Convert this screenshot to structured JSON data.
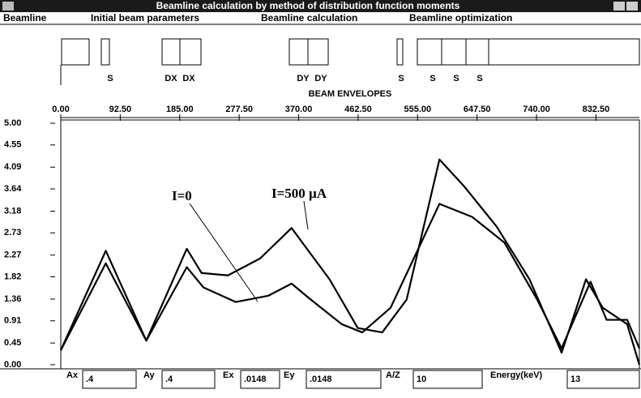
{
  "window": {
    "title": "Beamline calculation by method  of distribution function moments"
  },
  "menu": [
    "Beamline",
    "Initial beam parameters",
    "Beamline calculation",
    "Beamline optimization"
  ],
  "beamline_elements": [
    "S",
    "DX",
    "DX",
    "DY",
    "DY",
    "S",
    "S",
    "S",
    "S"
  ],
  "chart_data": {
    "type": "line",
    "title": "BEAM ENVELOPES",
    "xlim": [
      0,
      900
    ],
    "ylim": [
      0,
      5
    ],
    "xticks": [
      {
        "value": 0,
        "label": "0.00"
      },
      {
        "value": 92.5,
        "label": "92.50"
      },
      {
        "value": 185,
        "label": "185.00"
      },
      {
        "value": 277.5,
        "label": "277.50"
      },
      {
        "value": 370,
        "label": "370.00"
      },
      {
        "value": 462.5,
        "label": "462.50"
      },
      {
        "value": 555,
        "label": "555.00"
      },
      {
        "value": 647.5,
        "label": "647.50"
      },
      {
        "value": 740,
        "label": "740.00"
      },
      {
        "value": 832.5,
        "label": "832.50"
      }
    ],
    "yticks": [
      {
        "value": 5,
        "label": "5.00"
      },
      4.55,
      4.09,
      3.64,
      3.18,
      2.73,
      2.27,
      1.82,
      1.36,
      0.91,
      0.45,
      {
        "value": 0,
        "label": "0.00"
      }
    ],
    "series": [
      {
        "name": "I=500 µA",
        "color": "#000000",
        "x": [
          0,
          70,
          133,
          196,
          219,
          260,
          310,
          359,
          418,
          462,
          500,
          538,
          589,
          627,
          678,
          729,
          779,
          817,
          843,
          881,
          900
        ],
        "values": [
          0.3,
          2.36,
          0.5,
          2.4,
          1.9,
          1.85,
          2.2,
          2.83,
          1.77,
          0.76,
          0.67,
          1.35,
          4.25,
          3.7,
          2.86,
          1.77,
          0.25,
          1.77,
          1.18,
          0.84,
          0
        ]
      },
      {
        "name": "I=0",
        "color": "#000000",
        "x": [
          0,
          70,
          133,
          196,
          222,
          272,
          323,
          359,
          386,
          437,
          469,
          513,
          589,
          640,
          690,
          741,
          779,
          824,
          849,
          881,
          900
        ],
        "values": [
          0.3,
          2.1,
          0.5,
          2.02,
          1.6,
          1.3,
          1.43,
          1.68,
          1.38,
          0.84,
          0.67,
          1.18,
          3.33,
          3.06,
          2.53,
          1.35,
          0.34,
          1.72,
          0.93,
          0.93,
          0.34
        ]
      }
    ]
  },
  "parameters": [
    {
      "label": "Ax",
      "value": ".4"
    },
    {
      "label": "Ay",
      "value": ".4"
    },
    {
      "label": "Ex",
      "value": ".0148"
    },
    {
      "label": "Ey",
      "value": ".0148"
    },
    {
      "label": "A/Z",
      "value": "10"
    },
    {
      "label": "Energy(keV)",
      "value": "13"
    }
  ]
}
